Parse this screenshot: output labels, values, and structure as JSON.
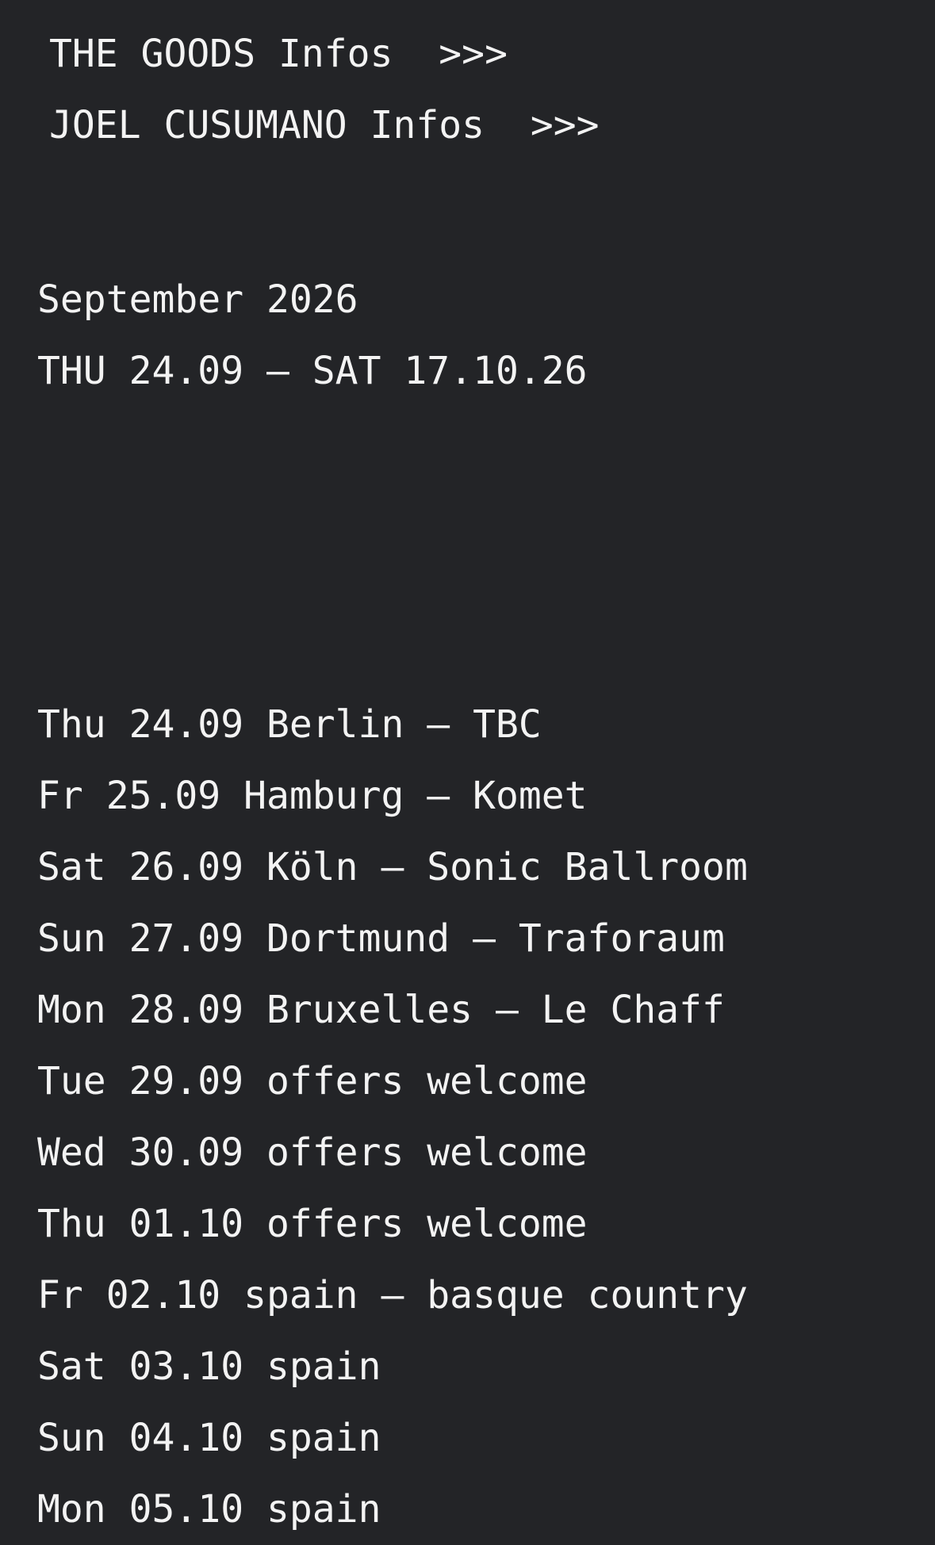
{
  "page": {
    "background_color": "#232427",
    "text_color": "#f3f3f3"
  },
  "nav": {
    "links": [
      {
        "label": "THE GOODS Infos  >>>"
      },
      {
        "label": "JOEL CUSUMANO Infos  >>>"
      }
    ]
  },
  "tour": {
    "month_title": "September 2026",
    "date_range": "THU 24.09 — SAT 17.10.26",
    "dates": [
      "Thu 24.09 Berlin — TBC",
      "Fr 25.09 Hamburg — Komet",
      "Sat 26.09 Köln — Sonic Ballroom",
      "Sun 27.09 Dortmund — Traforaum",
      "Mon 28.09 Bruxelles — Le Chaff",
      "Tue 29.09 offers welcome",
      "Wed 30.09 offers welcome",
      "Thu 01.10 offers welcome",
      "Fr 02.10 spain — basque country",
      "Sat 03.10 spain",
      "Sun 04.10 spain",
      "Mon 05.10 spain"
    ]
  }
}
